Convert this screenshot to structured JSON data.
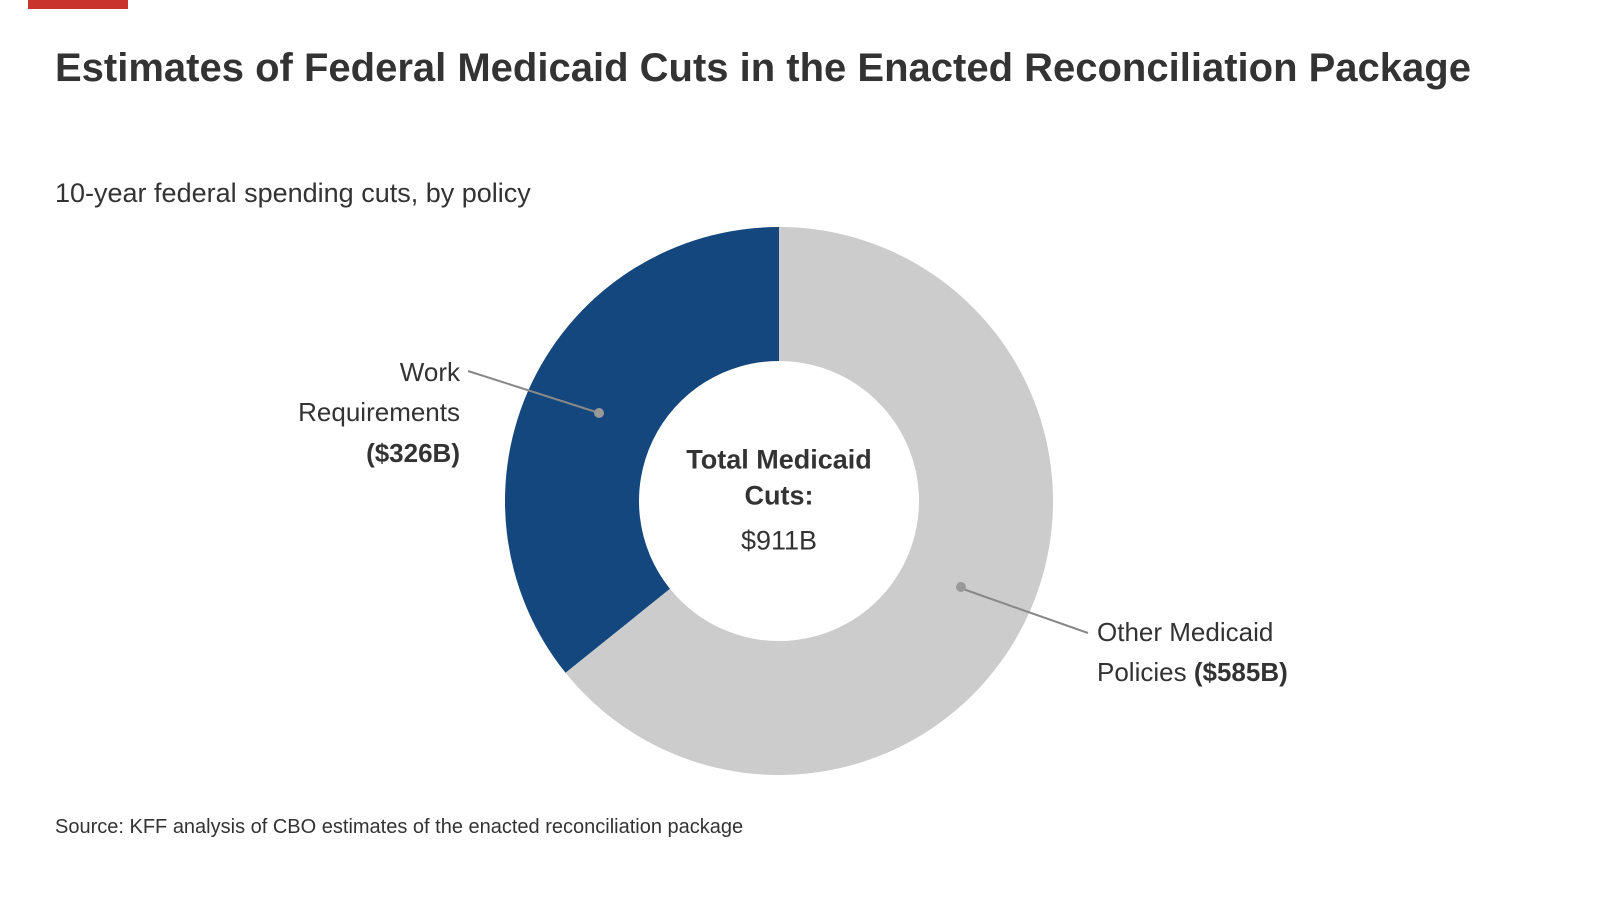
{
  "accent_color": "#C9342C",
  "header": {
    "title": "Estimates of Federal Medicaid Cuts in the Enacted Reconciliation Package",
    "subtitle": "10-year federal spending cuts, by policy"
  },
  "chart_data": {
    "type": "pie",
    "donut": true,
    "title": "Estimates of Federal Medicaid Cuts in the Enacted Reconciliation Package",
    "subtitle": "10-year federal spending cuts, by policy",
    "units": "USD billions over 10 years",
    "total": 911,
    "total_label": "Total Medicaid Cuts:",
    "total_display": "$911B",
    "start_angle_deg": -90,
    "direction": "clockwise",
    "segments": [
      {
        "label": "Other Medicaid Policies",
        "value": 585,
        "display": "($585B)",
        "color": "#CCCCCC"
      },
      {
        "label": "Work Requirements",
        "value": 326,
        "display": "($326B)",
        "color": "#14477D"
      }
    ]
  },
  "center": {
    "line1": "Total Medicaid",
    "line2": "Cuts:",
    "value": "$911B"
  },
  "labels": {
    "work": {
      "line1": "Work",
      "line2": "Requirements",
      "value": "($326B)"
    },
    "other": {
      "line1": "Other Medicaid",
      "line2": "Policies",
      "value": "($585B)"
    }
  },
  "source": "Source: KFF analysis of CBO estimates of the enacted reconciliation package"
}
